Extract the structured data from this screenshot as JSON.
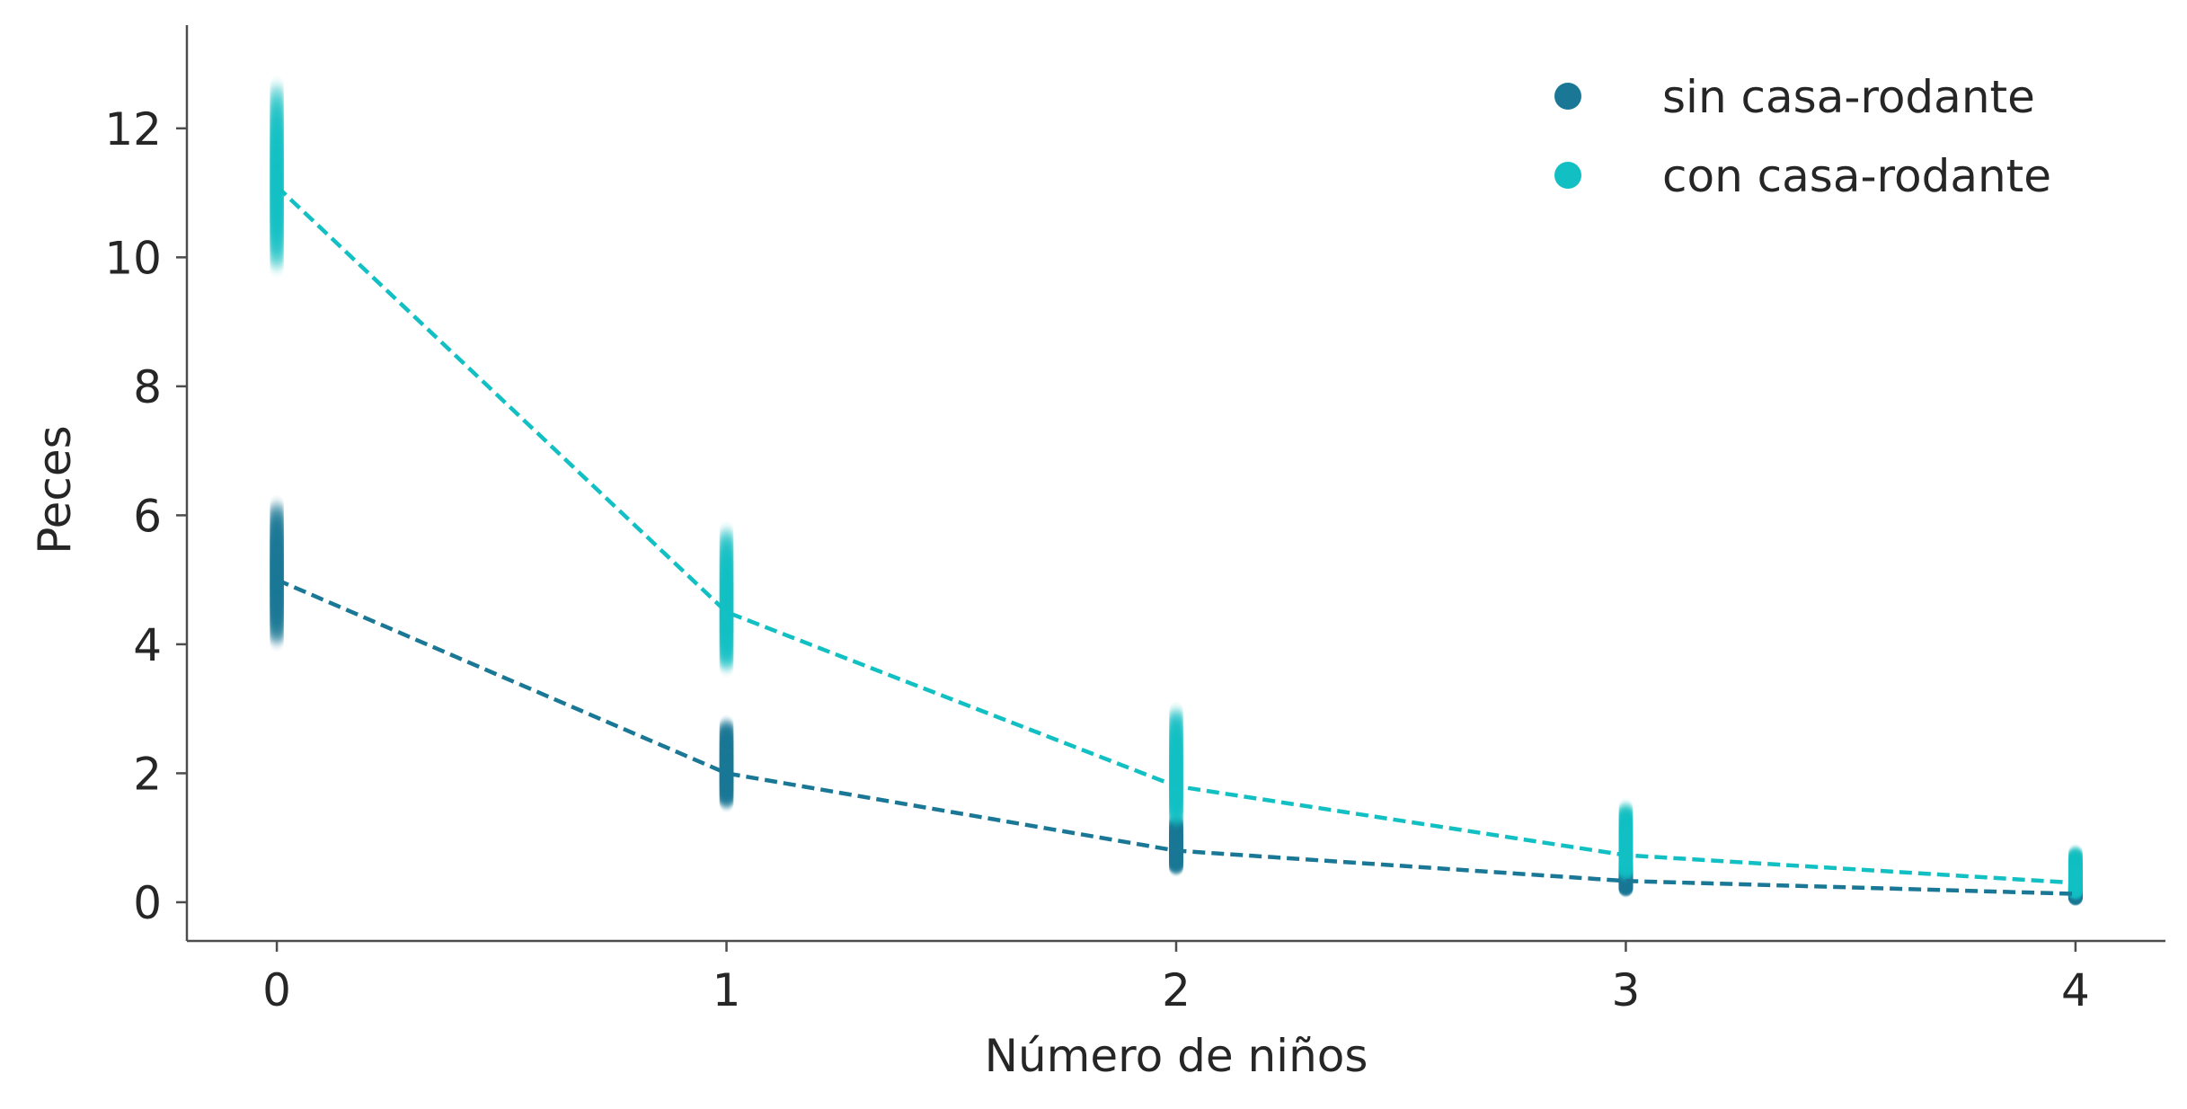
{
  "chart_data": {
    "type": "scatter",
    "xlabel": "Número de niños",
    "ylabel": "Peces",
    "x_ticks": [
      0,
      1,
      2,
      3,
      4
    ],
    "y_ticks": [
      0,
      2,
      4,
      6,
      8,
      10,
      12
    ],
    "xlim": [
      -0.2,
      4.2
    ],
    "ylim": [
      -0.6,
      13.6
    ],
    "grid": false,
    "legend_position": "top-right",
    "series": [
      {
        "name": "sin casa-rodante",
        "color": "#1a7896",
        "x": [
          0,
          1,
          2,
          3,
          4
        ],
        "mean": [
          5.0,
          2.0,
          0.8,
          0.33,
          0.13
        ],
        "spread_low": [
          4.0,
          1.5,
          0.5,
          0.18,
          0.05
        ],
        "spread_high": [
          6.2,
          2.8,
          1.3,
          0.6,
          0.3
        ]
      },
      {
        "name": "con casa-rodante",
        "color": "#12c0c4",
        "x": [
          0,
          1,
          2,
          3,
          4
        ],
        "mean": [
          11.1,
          4.5,
          1.8,
          0.73,
          0.3
        ],
        "spread_low": [
          9.8,
          3.6,
          1.2,
          0.4,
          0.12
        ],
        "spread_high": [
          12.7,
          5.8,
          3.0,
          1.5,
          0.8
        ]
      }
    ]
  }
}
